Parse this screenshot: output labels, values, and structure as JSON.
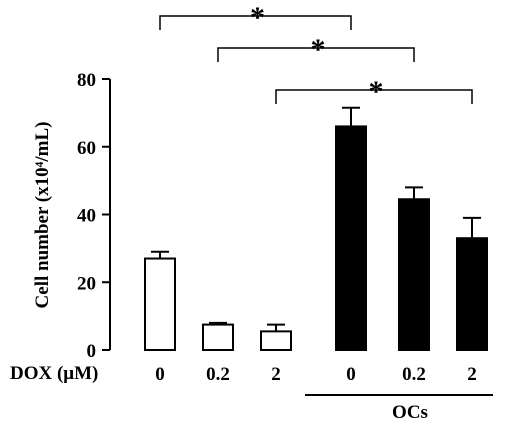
{
  "chart_data": {
    "type": "bar",
    "ylabel": "Cell number (x10⁴/mL)",
    "xlabel": "DOX (μM)",
    "ylim": [
      0,
      80
    ],
    "yticks": [
      0,
      20,
      40,
      60,
      80
    ],
    "categories": [
      "0",
      "0.2",
      "2",
      "0",
      "0.2",
      "2"
    ],
    "values": [
      27,
      7.5,
      5.5,
      66,
      44.5,
      33
    ],
    "errors": [
      2,
      0.5,
      2,
      5.5,
      3.5,
      6
    ],
    "bar_fill": [
      "#ffffff",
      "#ffffff",
      "#ffffff",
      "#000000",
      "#000000",
      "#000000"
    ],
    "group_label": "OCs",
    "significance": [
      {
        "from": 0,
        "to": 3,
        "label": "*"
      },
      {
        "from": 1,
        "to": 4,
        "label": "*"
      },
      {
        "from": 2,
        "to": 5,
        "label": "*"
      }
    ]
  }
}
